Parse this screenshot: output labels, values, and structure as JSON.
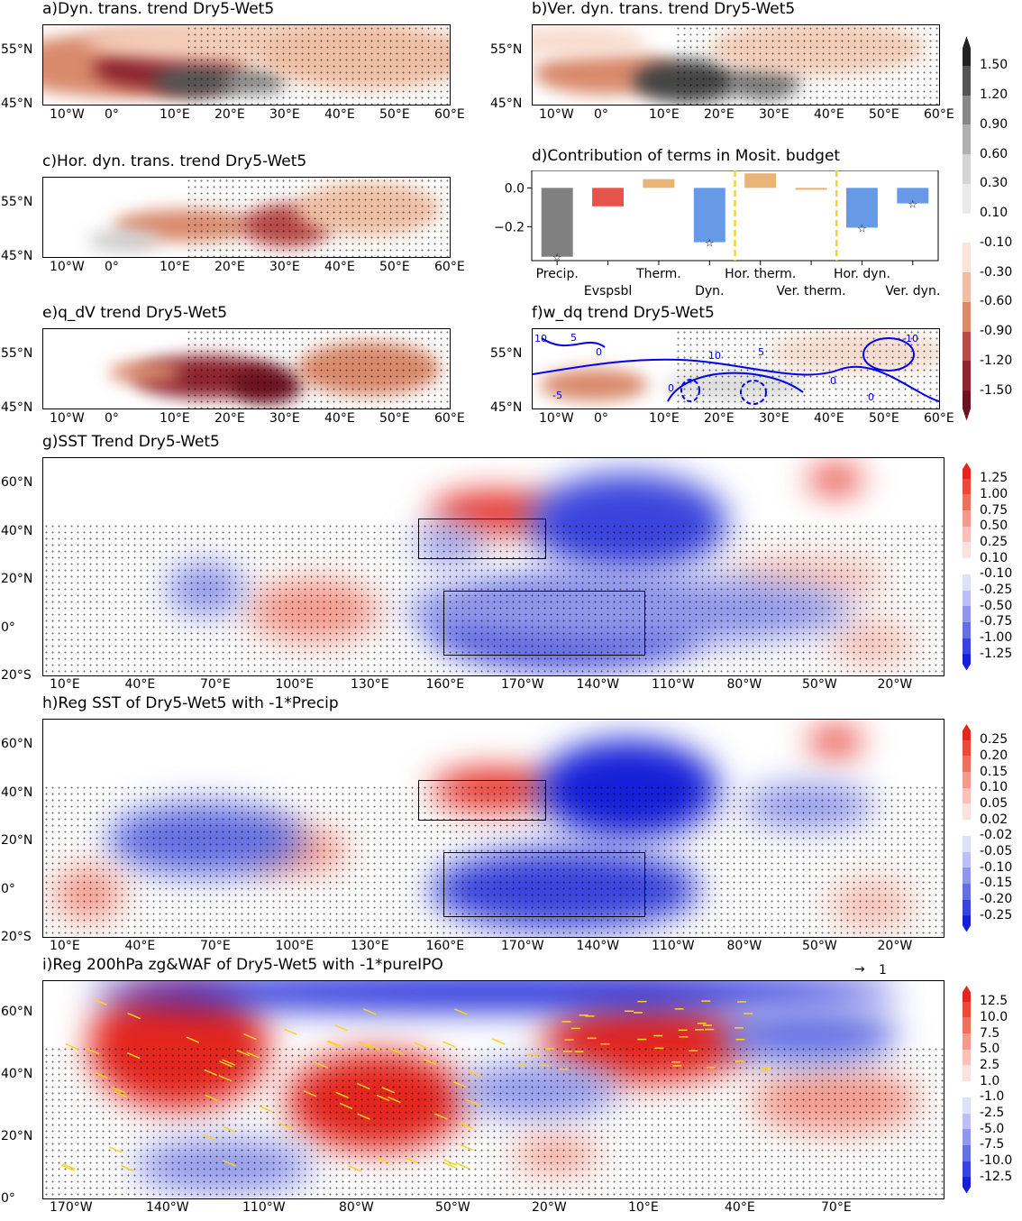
{
  "panels": {
    "a": {
      "title": "a)Dyn. trans. trend Dry5-Wet5"
    },
    "b": {
      "title": "b)Ver. dyn. trans. trend Dry5-Wet5"
    },
    "c": {
      "title": "c)Hor. dyn. trans. trend Dry5-Wet5"
    },
    "e": {
      "title": "e)q_dV trend Dry5-Wet5"
    },
    "f": {
      "title": "f)w_dq trend Dry5-Wet5",
      "contour_labels": [
        "10",
        "5",
        "0",
        "-5",
        "10",
        "5",
        "0",
        "0",
        "-10",
        "0"
      ]
    },
    "g": {
      "title": "g)SST Trend Dry5-Wet5"
    },
    "h": {
      "title": "h)Reg SST of Dry5-Wet5 with -1*Precip"
    },
    "i": {
      "title": "i)Reg 200hPa zg&WAF of Dry5-Wet5 with -1*pureIPO",
      "vector_key": "1"
    }
  },
  "small_map_axes": {
    "lat": [
      "55°N",
      "45°N"
    ],
    "lon": [
      "10°W",
      "0°",
      "10°E",
      "20°E",
      "30°E",
      "40°E",
      "50°E",
      "60°E"
    ]
  },
  "pac_axes": {
    "lat": [
      "60°N",
      "40°N",
      "20°N",
      "0°",
      "20°S"
    ],
    "lon": [
      "10°E",
      "40°E",
      "70°E",
      "100°E",
      "130°E",
      "160°E",
      "170°W",
      "140°W",
      "110°W",
      "80°W",
      "50°W",
      "20°W"
    ]
  },
  "i_axes": {
    "lat": [
      "60°N",
      "40°N",
      "20°N",
      "0°"
    ],
    "lon": [
      "170°W",
      "140°W",
      "110°W",
      "80°W",
      "50°W",
      "20°W",
      "10°E",
      "40°E",
      "70°E"
    ]
  },
  "colorbars": {
    "top": {
      "labels": [
        "1.50",
        "1.20",
        "0.90",
        "0.60",
        "0.30",
        "0.10",
        "-0.10",
        "-0.30",
        "-0.60",
        "-0.90",
        "-1.20",
        "-1.50"
      ],
      "colors": [
        "#222",
        "#555",
        "#888",
        "#b0b0b0",
        "#d4d4d4",
        "#eaeaea",
        "#ffffff",
        "#fbe4d8",
        "#efbfa4",
        "#d98a6c",
        "#b84a48",
        "#8e2530",
        "#6b1220"
      ]
    },
    "g": {
      "labels": [
        "1.25",
        "1.00",
        "0.75",
        "0.50",
        "0.25",
        "0.10",
        "-0.10",
        "-0.25",
        "-0.50",
        "-0.75",
        "-1.00",
        "-1.25"
      ],
      "colors": [
        "#e4261f",
        "#ea4a3a",
        "#f07060",
        "#f49a8c",
        "#f8c2b8",
        "#fce2dc",
        "#ffffff",
        "#dfe1f8",
        "#bcc0f2",
        "#9198ea",
        "#6470e2",
        "#3a44dc",
        "#1620d8"
      ]
    },
    "h": {
      "labels": [
        "0.25",
        "0.20",
        "0.15",
        "0.10",
        "0.05",
        "0.02",
        "-0.02",
        "-0.05",
        "-0.10",
        "-0.15",
        "-0.20",
        "-0.25"
      ],
      "colors": [
        "#e4261f",
        "#ea4a3a",
        "#f07060",
        "#f49a8c",
        "#f8c2b8",
        "#fce2dc",
        "#ffffff",
        "#dfe1f8",
        "#bcc0f2",
        "#9198ea",
        "#6470e2",
        "#3a44dc",
        "#1620d8"
      ]
    },
    "i": {
      "labels": [
        "12.5",
        "10.0",
        "7.5",
        "5.0",
        "2.5",
        "1.0",
        "-1.0",
        "-2.5",
        "-5.0",
        "-7.5",
        "-10.0",
        "-12.5"
      ],
      "colors": [
        "#e4261f",
        "#ea4a3a",
        "#f07060",
        "#f49a8c",
        "#f8c2b8",
        "#fce2dc",
        "#ffffff",
        "#dfe1f8",
        "#bcc0f2",
        "#9198ea",
        "#6470e2",
        "#3a44dc",
        "#1620d8"
      ]
    }
  },
  "chart_data": {
    "type": "bar",
    "title": "d)Contribution of terms in Mosit. budget",
    "categories": [
      "Precip.",
      "Evspsbl",
      "Therm.",
      "Dyn.",
      "Hor. therm.",
      "Ver. therm.",
      "Hor. dyn.",
      "Ver. dyn."
    ],
    "values": [
      -0.355,
      -0.095,
      0.045,
      -0.28,
      0.075,
      -0.01,
      -0.205,
      -0.08
    ],
    "significant": [
      true,
      false,
      false,
      true,
      false,
      false,
      true,
      true
    ],
    "colors": [
      "#808080",
      "#e5534b",
      "#e9b477",
      "#6699e6",
      "#e9b477",
      "#e9b477",
      "#6699e6",
      "#6699e6"
    ],
    "yticks": [
      "0.0",
      "−0.2"
    ],
    "ytick_values": [
      0,
      -0.2
    ],
    "ylim": [
      -0.375,
      0.09
    ],
    "separators_after": [
      3,
      5
    ],
    "xlabel": "",
    "ylabel": ""
  }
}
